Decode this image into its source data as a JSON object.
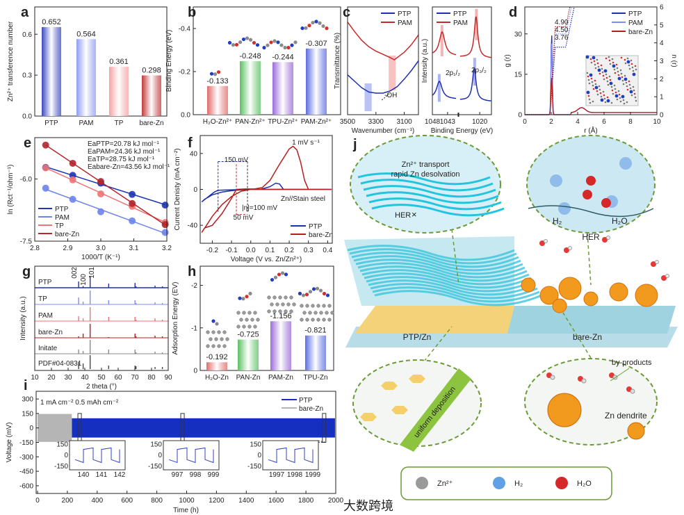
{
  "panel_labels": [
    "a",
    "b",
    "c",
    "d",
    "e",
    "f",
    "g",
    "h",
    "i",
    "j"
  ],
  "chart_data": [
    {
      "panel": "a",
      "type": "bar",
      "title": "",
      "xlabel": "",
      "ylabel": "Zn²⁺ transference number",
      "categories": [
        "PTP",
        "PAM",
        "TP",
        "bare-Zn"
      ],
      "values": [
        0.652,
        0.564,
        0.361,
        0.298
      ],
      "value_labels": [
        "0.652",
        "0.564",
        "0.361",
        "0.298"
      ],
      "colors": [
        "#3a49bd",
        "#8e9cf2",
        "#f3a2a2",
        "#c1383b"
      ],
      "ylim": [
        0,
        0.8
      ],
      "yticks": [
        {
          "v": 0,
          "label": "0.0"
        },
        {
          "v": 0.3,
          "label": "0.3"
        },
        {
          "v": 0.6,
          "label": "0.6"
        }
      ]
    },
    {
      "panel": "b",
      "type": "bar",
      "ylabel": "Binding Energy (eV)",
      "categories": [
        "H₂O-Zn²⁺",
        "PAN-Zn²⁺",
        "TPU-Zn²⁺",
        "PAM-Zn²⁺"
      ],
      "values": [
        -0.133,
        -0.248,
        -0.244,
        -0.307
      ],
      "value_labels": [
        "-0.133",
        "-0.248",
        "-0.244",
        "-0.307"
      ],
      "colors": [
        "#e06a6a",
        "#5cbf63",
        "#9a6bd8",
        "#5a6de0"
      ],
      "ylim": [
        0,
        -0.5
      ],
      "yticks": [
        {
          "v": 0,
          "label": "0.0"
        },
        {
          "v": -0.2,
          "label": "-0.2"
        },
        {
          "v": -0.4,
          "label": "-0.4"
        }
      ]
    },
    {
      "panel": "c-left",
      "type": "line",
      "xlabel": "Wavenumber (cm⁻¹)",
      "ylabel": "Transmittance (%)",
      "xlim": [
        3500,
        3000
      ],
      "xticks": [
        {
          "v": 3500,
          "label": "3500"
        },
        {
          "v": 3300,
          "label": "3300"
        },
        {
          "v": 3100,
          "label": "3100"
        }
      ],
      "annotation": "-OH",
      "series": [
        {
          "name": "PTP",
          "color": "#1d2fb0",
          "x": [
            3500,
            3450,
            3400,
            3350,
            3300,
            3250,
            3200,
            3150,
            3100,
            3050,
            3000
          ],
          "y": [
            0.37,
            0.31,
            0.25,
            0.21,
            0.2,
            0.2,
            0.22,
            0.26,
            0.33,
            0.41,
            0.5
          ]
        },
        {
          "name": "PAM",
          "color": "#c62828",
          "x": [
            3500,
            3450,
            3400,
            3350,
            3300,
            3250,
            3200,
            3170,
            3130,
            3100,
            3050,
            3000
          ],
          "y": [
            0.86,
            0.77,
            0.69,
            0.63,
            0.59,
            0.56,
            0.53,
            0.51,
            0.55,
            0.58,
            0.65,
            0.74
          ]
        }
      ],
      "highlights": [
        {
          "from": 3380,
          "to": 3330,
          "color": "#aab4f2"
        },
        {
          "from": 3210,
          "to": 3160,
          "color": "#f6b3b3"
        }
      ]
    },
    {
      "panel": "c-right",
      "type": "line",
      "xlabel": "Binding Energy (eV)",
      "ylabel": "Intensity (a.u.)",
      "xlim": [
        1048,
        1014
      ],
      "xticks": [
        {
          "v": 1048,
          "label": "1048"
        },
        {
          "v": 1043,
          "label": "1043"
        },
        {
          "v": 1020,
          "label": "1020"
        }
      ],
      "annotations": [
        "2p₁/₂",
        "2p₃/₂"
      ],
      "series": [
        {
          "name": "PTP",
          "color": "#1d2fb0",
          "baseline": 0.15,
          "peaks": [
            {
              "x": 1045.7,
              "h": 0.16
            },
            {
              "x": 1022.8,
              "h": 0.3
            }
          ]
        },
        {
          "name": "PAM",
          "color": "#c62828",
          "baseline": 0.55,
          "peaks": [
            {
              "x": 1044.8,
              "h": 0.22
            },
            {
              "x": 1021.9,
              "h": 0.38
            }
          ]
        }
      ]
    },
    {
      "panel": "d",
      "type": "line",
      "xlabel": "r (Å)",
      "ylabel": "g (r)",
      "ylabel_right": "n (r)",
      "xlim": [
        0,
        10
      ],
      "ylim": [
        0,
        40
      ],
      "ylim_right": [
        0,
        6
      ],
      "xticks": [
        0,
        2,
        4,
        6,
        8,
        10
      ],
      "yticks": [
        0,
        15,
        30
      ],
      "yticks_right": [
        0,
        1,
        2,
        3,
        4,
        5,
        6
      ],
      "coordination_numbers": [
        {
          "series": "bare-Zn",
          "value": "4.90",
          "color": "#c62828"
        },
        {
          "series": "PAM",
          "value": "4.50",
          "color": "#7e8cf0"
        },
        {
          "series": "PTP",
          "value": "3.76",
          "color": "#1d2fb0"
        }
      ],
      "series": [
        {
          "name": "PTP",
          "color": "#1d2fb0",
          "peak_height": 30,
          "n_plateau": 3.76
        },
        {
          "name": "PAM",
          "color": "#7e8cf0",
          "peak_height": 27,
          "n_plateau": 4.5
        },
        {
          "name": "bare-Zn",
          "color": "#b71c1c",
          "peak_height": 14,
          "n_plateau": 4.9
        }
      ]
    },
    {
      "panel": "e",
      "type": "scatter",
      "xlabel": "1000/T (K⁻¹)",
      "ylabel": "ln (Rct⁻¹/ohm⁻¹)",
      "xlim": [
        2.8,
        3.2
      ],
      "ylim": [
        -7.5,
        -5.0
      ],
      "xticks": [
        {
          "v": 2.8,
          "label": "2.8"
        },
        {
          "v": 2.9,
          "label": "2.9"
        },
        {
          "v": 3.0,
          "label": "3.0"
        },
        {
          "v": 3.1,
          "label": "3.1"
        },
        {
          "v": 3.2,
          "label": "3.2"
        }
      ],
      "yticks": [
        {
          "v": -6.0,
          "label": "-6.0"
        },
        {
          "v": -7.5,
          "label": "-7.5"
        }
      ],
      "x": [
        2.833,
        2.915,
        3.0,
        3.095,
        3.195
      ],
      "series": [
        {
          "name": "PTP",
          "color": "#1f35b5",
          "y": [
            -5.72,
            -5.91,
            -6.1,
            -6.37,
            -6.63
          ],
          "ea": "EaPTP=20.78 kJ mol⁻¹"
        },
        {
          "name": "PAM",
          "color": "#6d84ea",
          "y": [
            -6.22,
            -6.49,
            -6.79,
            -7.01,
            -7.29
          ],
          "ea": "EaPAM=24.36 kJ mol⁻¹"
        },
        {
          "name": "TP",
          "color": "#ef7373",
          "y": [
            -5.73,
            -6.02,
            -6.36,
            -6.66,
            -7.05
          ],
          "ea": "EaTP=28.75 kJ mol⁻¹"
        },
        {
          "name": "bare-Zn",
          "color": "#b3262a",
          "y": [
            -5.18,
            -5.62,
            -6.06,
            -6.59,
            -7.1
          ],
          "ea": "Eabare-Zn=43.56 kJ mol⁻¹"
        }
      ]
    },
    {
      "panel": "f",
      "type": "line",
      "xlabel": "Voltage (V vs. Zn/Zn²⁺)",
      "ylabel": "Current Denisty (mA cm⁻²)",
      "xlim": [
        -0.263,
        0.424
      ],
      "ylim": [
        -60,
        60
      ],
      "xticks": [
        {
          "v": -0.2,
          "label": "-0.2"
        },
        {
          "v": -0.1,
          "label": "-0.1"
        },
        {
          "v": 0,
          "label": "0.0"
        },
        {
          "v": 0.1,
          "label": "0.1"
        },
        {
          "v": 0.2,
          "label": "0.2"
        },
        {
          "v": 0.3,
          "label": "0.3"
        },
        {
          "v": 0.4,
          "label": "0.4"
        }
      ],
      "yticks": [
        {
          "v": 40,
          "label": "40"
        },
        {
          "v": 0,
          "label": "0"
        },
        {
          "v": -40,
          "label": "-40"
        }
      ],
      "annotations": {
        "rate": "1 mV s⁻¹",
        "cell": "Zn//Stain steel",
        "ptp_gap": "150 mV",
        "bare_gap": "50 mV",
        "eta": "|η|=100 mV"
      },
      "series": [
        {
          "name": "PTP",
          "color": "#1d2fb0",
          "x": [
            -0.255,
            -0.22,
            -0.19,
            -0.17,
            -0.1,
            0,
            0.05,
            0.1,
            0.13,
            0.15,
            0.17,
            0.2,
            0.42,
            0.1,
            0,
            -0.05,
            -0.1,
            -0.15,
            -0.2,
            -0.24,
            -0.255
          ],
          "y": [
            -14,
            -8,
            -3,
            -1,
            -0.5,
            0,
            0,
            3,
            7,
            6,
            0,
            0,
            0,
            0,
            0,
            -0.5,
            -1.5,
            -3,
            -6,
            -11,
            -14
          ]
        },
        {
          "name": "bare-Zn",
          "color": "#b71c1c",
          "x": [
            -0.255,
            -0.24,
            -0.2,
            -0.15,
            -0.1,
            -0.075,
            -0.03,
            0.02,
            0.06,
            0.1,
            0.15,
            0.2,
            0.22,
            0.24,
            0.26,
            0.28,
            0.3,
            0.42,
            0.2,
            0,
            -0.05,
            -0.1,
            -0.15,
            -0.2,
            -0.23,
            -0.255
          ],
          "y": [
            -48,
            -43,
            -40,
            -27,
            -10,
            0,
            0.5,
            0.5,
            2,
            10,
            28,
            45,
            48,
            44,
            30,
            10,
            0,
            0,
            0,
            0,
            -2,
            -8,
            -17,
            -30,
            -40,
            -48
          ]
        }
      ]
    },
    {
      "panel": "g",
      "type": "line",
      "xlabel": "2 theta (°)",
      "ylabel": "Intensity (a.u.)",
      "xlim": [
        10,
        90
      ],
      "xticks": [
        10,
        20,
        30,
        40,
        50,
        60,
        70,
        80,
        90
      ],
      "peak_labels": [
        "002",
        "100",
        "101"
      ],
      "peaks": [
        36.3,
        39.0,
        43.2,
        54.3,
        70.1,
        70.7,
        82.1,
        86.5
      ],
      "series": [
        {
          "name": "PTP",
          "color": "#1d2fb0",
          "rel": [
            0.45,
            0.12,
            0.85,
            0.3,
            0.35,
            0.1,
            0.15,
            0.1
          ]
        },
        {
          "name": "TP",
          "color": "#7e8cf0",
          "rel": [
            0.5,
            0.2,
            1.0,
            0.3,
            0.3,
            0.1,
            0.15,
            0.1
          ]
        },
        {
          "name": "PAM",
          "color": "#ef7373",
          "rel": [
            0.35,
            0.2,
            1.0,
            0.3,
            0.3,
            0.1,
            0.2,
            0.1
          ]
        },
        {
          "name": "bare-Zn",
          "color": "#b71c1c",
          "rel": [
            0.1,
            0.3,
            1.0,
            0.05,
            0.3,
            0.1,
            0.15,
            0.1
          ]
        },
        {
          "name": "Initate",
          "color": "#888888",
          "rel": [
            0.3,
            0.2,
            1.0,
            0.3,
            0.3,
            0.1,
            0.15,
            0.1
          ]
        },
        {
          "name": "PDF#04-0831",
          "color": "#444444",
          "rel": [
            0.5,
            0.4,
            1.0,
            0.25,
            0.25,
            0.2,
            0.15,
            0.15
          ]
        }
      ]
    },
    {
      "panel": "h",
      "type": "bar",
      "ylabel": "Adsorption Energy (EV)",
      "categories": [
        "H₂O-Zn",
        "PAN-Zn",
        "PAM-Zn",
        "TPU-Zn"
      ],
      "values": [
        -0.192,
        -0.725,
        -1.156,
        -0.821
      ],
      "value_labels": [
        "-0.192",
        "-0.725",
        "-1.156",
        "-0.821"
      ],
      "colors": [
        "#e06a6a",
        "#5cbf63",
        "#9a6bd8",
        "#5a6de0"
      ],
      "ylim": [
        0,
        -2.45
      ],
      "yticks": [
        {
          "v": 0,
          "label": "0"
        },
        {
          "v": -1,
          "label": "-1"
        },
        {
          "v": -2,
          "label": "-2"
        }
      ]
    },
    {
      "panel": "i",
      "type": "line",
      "xlabel": "Time (h)",
      "ylabel": "Voltage (mV)",
      "xlim": [
        0,
        2000
      ],
      "ylim": [
        -680,
        380
      ],
      "xticks": [
        0,
        200,
        400,
        600,
        800,
        1000,
        1200,
        1400,
        1600,
        1800,
        2000
      ],
      "yticks": [
        300,
        150,
        0,
        -150,
        -300,
        -450,
        -600
      ],
      "condition": "1 mA cm⁻² 0.5 mAh cm⁻²",
      "series": [
        {
          "name": "PTP",
          "color": "#1530c0",
          "t_range": [
            230,
            1995
          ],
          "amplitude_mV": 100
        },
        {
          "name": "bare-Zn",
          "color": "#b5b5b5",
          "t_range": [
            0,
            230
          ],
          "amplitude_mV": 145
        }
      ],
      "insets": [
        {
          "at_h": 280,
          "xticks": [
            "140",
            "141",
            "142"
          ],
          "yticks": [
            "150",
            "0",
            "-150"
          ]
        },
        {
          "at_h": 970,
          "xticks": [
            "997",
            "998",
            "999"
          ],
          "yticks": [
            "150",
            "0",
            "-150"
          ]
        },
        {
          "at_h": 1920,
          "xticks": [
            "1997",
            "1998",
            "1999"
          ],
          "yticks": [
            "150",
            "0",
            "-150"
          ]
        }
      ]
    }
  ],
  "schematic_j": {
    "top_left": {
      "line1": "Zn²⁺ transport",
      "line2": "rapid Zn desolvation",
      "her": "HER",
      "her_mark": "×"
    },
    "top_right": {
      "h2": "H₂",
      "h2o": "H₂O",
      "her": "HER"
    },
    "left_label": "PTP/Zn",
    "right_label": "bare-Zn",
    "bottom_left": "uniform deposition",
    "bottom_right": {
      "byproducts": "by-products",
      "dendrite": "Zn dendrite"
    },
    "legend": [
      "Zn²⁺",
      "H₂",
      "H₂O"
    ]
  },
  "watermark": "大数跨境"
}
